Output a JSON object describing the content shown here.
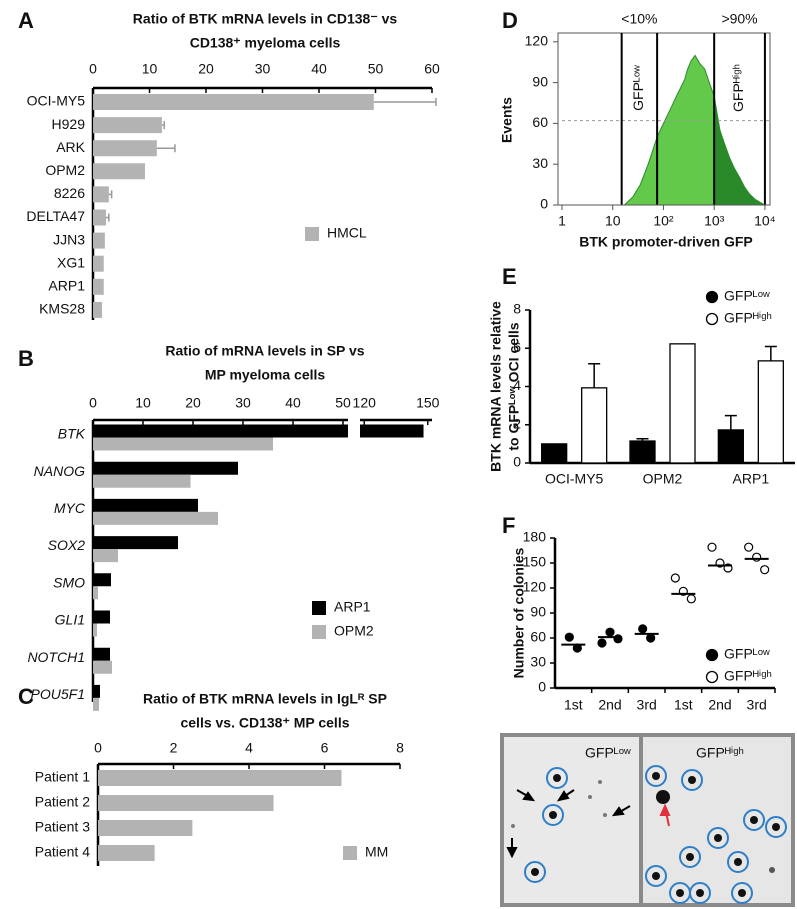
{
  "chart_data": [
    {
      "panel": "A",
      "type": "hbar",
      "title": [
        "Ratio of BTK mRNA levels in CD138⁻ vs",
        "CD138⁺ myeloma cells"
      ],
      "categories": [
        "OCI-MY5",
        "H929",
        "ARK",
        "OPM2",
        "8226",
        "DELTA47",
        "JJN3",
        "XG1",
        "ARP1",
        "KMS28"
      ],
      "series": [
        {
          "name": "HMCL",
          "color": "#b3b3b3",
          "values": [
            49.7,
            12.2,
            11.3,
            9.2,
            2.8,
            2.3,
            2.1,
            1.9,
            1.9,
            1.6
          ],
          "errors": [
            11,
            0.4,
            3.2,
            null,
            0.5,
            0.5,
            null,
            null,
            null,
            null
          ]
        }
      ],
      "xlim": [
        0,
        60
      ],
      "xticks": [
        0,
        10,
        20,
        30,
        40,
        50,
        60
      ]
    },
    {
      "panel": "B",
      "type": "hbar",
      "title": [
        "Ratio of mRNA levels in SP vs",
        "MP myeloma cells"
      ],
      "categories": [
        "BTK",
        "NANOG",
        "MYC",
        "SOX2",
        "SMO",
        "GLI1",
        "NOTCH1",
        "POU5F1"
      ],
      "italic_categories": true,
      "series": [
        {
          "name": "ARP1",
          "color": "#000000",
          "values": [
            148,
            29,
            21,
            17,
            3.6,
            3.4,
            3.4,
            1.4
          ]
        },
        {
          "name": "OPM2",
          "color": "#b3b3b3",
          "values": [
            36,
            19.5,
            25,
            5,
            1,
            0.8,
            3.8,
            1.2
          ]
        }
      ],
      "xlim": [
        0,
        152
      ],
      "xbreak": [
        51,
        118
      ],
      "xticks": [
        0,
        10,
        20,
        30,
        40,
        50,
        120,
        150
      ]
    },
    {
      "panel": "C",
      "type": "hbar",
      "title": [
        "Ratio of BTK mRNA levels in IgLᴿ SP",
        "cells vs. CD138⁺ MP cells"
      ],
      "categories": [
        "Patient 1",
        "Patient 2",
        "Patient 3",
        "Patient 4"
      ],
      "series": [
        {
          "name": "MM",
          "color": "#b3b3b3",
          "values": [
            6.45,
            4.65,
            2.5,
            1.5
          ]
        }
      ],
      "xlim": [
        0,
        8
      ],
      "xticks": [
        0,
        2,
        4,
        6,
        8
      ]
    },
    {
      "panel": "D",
      "type": "area",
      "x": [
        17,
        25,
        35,
        50,
        75,
        100,
        135,
        170,
        210,
        260,
        300,
        350,
        420,
        520,
        650,
        800,
        1000,
        1300,
        1600,
        2000,
        2500,
        3200,
        4000,
        5000,
        6500,
        8000,
        10000
      ],
      "values": [
        0,
        6,
        15,
        30,
        50,
        60,
        70,
        78,
        85,
        92,
        100,
        106,
        110,
        104,
        100,
        90,
        80,
        55,
        45,
        35,
        27,
        20,
        13,
        8,
        4,
        2,
        0
      ],
      "color": "#62c94a",
      "color_high": "#2a8a2a",
      "log_x": true,
      "xlim": [
        1,
        12600
      ],
      "ylim": [
        0,
        125
      ],
      "xticks": [
        1,
        10,
        {
          "value": 100,
          "label": "10²"
        },
        {
          "value": 1000,
          "label": "10³"
        },
        {
          "value": 10000,
          "label": "10⁴"
        }
      ],
      "yticks": [
        0,
        30,
        60,
        90,
        120
      ],
      "hline": 62,
      "gates": [
        15,
        75,
        1000,
        10000
      ],
      "regions": [
        {
          "label": "GFPᴸᵒʷ",
          "share": "<10%"
        },
        {
          "label": "GFPᴴⁱᵍʰ",
          "share": ">90%"
        }
      ],
      "xlabel": "BTK promoter-driven GFP",
      "ylabel": "Events"
    },
    {
      "panel": "E",
      "type": "bar",
      "categories": [
        "OCI-MY5",
        "OPM2",
        "ARP1"
      ],
      "series": [
        {
          "name": "GFPᴸᵒʷ",
          "color": "#000000",
          "values": [
            1.0,
            1.15,
            1.73
          ],
          "errors": [
            null,
            0.12,
            0.75
          ]
        },
        {
          "name": "GFPᴴⁱᵍʰ",
          "color": "#ffffff",
          "values": [
            3.93,
            6.23,
            5.34
          ],
          "errors": [
            1.26,
            null,
            0.75
          ]
        }
      ],
      "ylim": [
        0,
        8
      ],
      "yticks": [
        0,
        2,
        4,
        6,
        8
      ],
      "ylabel": [
        "BTK mRNA levels relative",
        "to GFPᴸᵒʷ OCI cells"
      ]
    },
    {
      "panel": "F",
      "type": "dotplot",
      "categories": [
        "1st",
        "2nd",
        "3rd",
        "1st",
        "2nd",
        "3rd"
      ],
      "series": [
        {
          "name": "GFPᴸᵒʷ",
          "color": "#000000",
          "values": [
            [
              61,
              48
            ],
            [
              54,
              67,
              59
            ],
            [
              71,
              60
            ],
            null,
            null,
            null
          ],
          "means": [
            52,
            61,
            65,
            null,
            null,
            null
          ]
        },
        {
          "name": "GFPᴴⁱᵍʰ",
          "color": "#ffffff",
          "values": [
            null,
            null,
            null,
            [
              132,
              116,
              107
            ],
            [
              169,
              150,
              144
            ],
            [
              169,
              157,
              142
            ]
          ],
          "means": [
            null,
            null,
            null,
            113,
            147,
            155
          ]
        }
      ],
      "ylim": [
        0,
        180
      ],
      "yticks": [
        0,
        30,
        60,
        90,
        120,
        150,
        180
      ],
      "ylabel": "Number of colonies"
    }
  ],
  "micrograph": {
    "labels": [
      "GFPᴸᵒʷ",
      "GFPᴴⁱᵍʰ"
    ]
  }
}
